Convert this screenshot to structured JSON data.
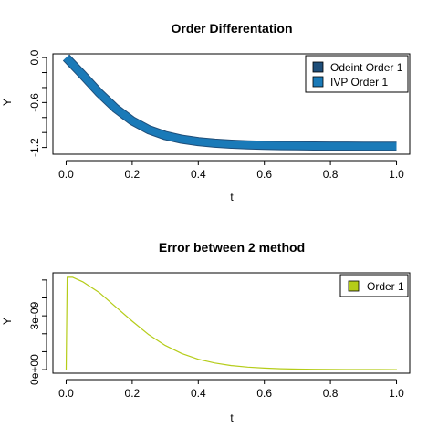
{
  "chart_data": [
    {
      "type": "line",
      "title": "Order Differentation",
      "xlabel": "t",
      "ylabel": "Y",
      "xlim": [
        0,
        1
      ],
      "ylim": [
        -1.3,
        0.05
      ],
      "xticks": [
        "0.0",
        "0.2",
        "0.4",
        "0.6",
        "0.8",
        "1.0"
      ],
      "yticks": [
        "-1.2",
        "-0.6",
        "0.0"
      ],
      "legend_position": "top-right",
      "x": [
        0.0,
        0.05,
        0.1,
        0.15,
        0.2,
        0.25,
        0.3,
        0.35,
        0.4,
        0.45,
        0.5,
        0.55,
        0.6,
        0.65,
        0.7,
        0.75,
        0.8,
        0.85,
        0.9,
        0.95,
        1.0
      ],
      "series": [
        {
          "name": "Odeint Order 1",
          "color": "#1f4e79",
          "values": [
            0.0,
            -0.232,
            -0.471,
            -0.68,
            -0.844,
            -0.962,
            -1.04,
            -1.09,
            -1.122,
            -1.143,
            -1.156,
            -1.165,
            -1.171,
            -1.175,
            -1.178,
            -1.18,
            -1.181,
            -1.182,
            -1.183,
            -1.183,
            -1.184
          ]
        },
        {
          "name": "IVP Order 1",
          "color": "#1a7ab8",
          "values": [
            0.0,
            -0.232,
            -0.471,
            -0.68,
            -0.844,
            -0.962,
            -1.04,
            -1.09,
            -1.122,
            -1.143,
            -1.156,
            -1.165,
            -1.171,
            -1.175,
            -1.178,
            -1.18,
            -1.181,
            -1.182,
            -1.183,
            -1.183,
            -1.184
          ]
        }
      ]
    },
    {
      "type": "line",
      "title": "Error between 2 method",
      "xlabel": "t",
      "ylabel": "Y",
      "xlim": [
        0,
        1
      ],
      "ylim": [
        0,
        5.3e-09
      ],
      "xticks": [
        "0.0",
        "0.2",
        "0.4",
        "0.6",
        "0.8",
        "1.0"
      ],
      "yticks": [
        "0e+00",
        "3e-09"
      ],
      "legend_position": "top-right",
      "x": [
        0.0,
        0.003,
        0.01,
        0.02,
        0.05,
        0.1,
        0.15,
        0.2,
        0.25,
        0.3,
        0.35,
        0.4,
        0.45,
        0.5,
        0.55,
        0.6,
        0.65,
        0.7,
        0.75,
        0.8,
        0.85,
        0.9,
        0.95,
        1.0
      ],
      "series": [
        {
          "name": "Order 1",
          "color": "#b5cc18",
          "values": [
            0.0,
            5.15e-09,
            5.15e-09,
            5.15e-09,
            4.9e-09,
            4.3e-09,
            3.5e-09,
            2.7e-09,
            1.95e-09,
            1.35e-09,
            9e-10,
            5.8e-10,
            3.7e-10,
            2.3e-10,
            1.4e-10,
            8.5e-11,
            5e-11,
            3e-11,
            1.8e-11,
            1e-11,
            6e-12,
            3e-12,
            2e-12,
            1e-12
          ]
        }
      ]
    }
  ]
}
